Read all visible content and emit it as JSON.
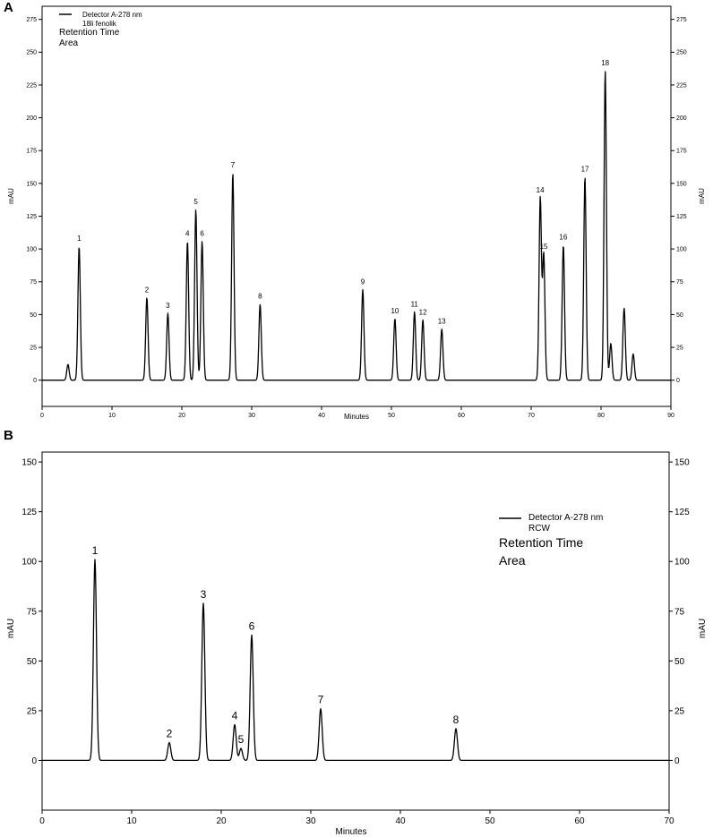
{
  "panels": [
    {
      "letter": "A",
      "legend": {
        "detector": "Detector A-278 nm",
        "sample": "18li fenolik",
        "line1": "Retention Time",
        "line2": "Area"
      },
      "ylabel_left": "mAU",
      "ylabel_right": "mAU",
      "xlabel": "Minutes"
    },
    {
      "letter": "B",
      "legend": {
        "detector": "Detector A-278 nm",
        "sample": "RCW",
        "line1": "Retention Time",
        "line2": "Area"
      },
      "ylabel_left": "mAU",
      "ylabel_right": "mAU",
      "xlabel": "Minutes"
    }
  ],
  "chart_data": [
    {
      "type": "line",
      "xlabel": "Minutes",
      "ylabel": "mAU",
      "xlim": [
        0,
        90
      ],
      "ylim": [
        -20,
        285
      ],
      "xticks": [
        0,
        10,
        20,
        30,
        40,
        50,
        60,
        70,
        80,
        90
      ],
      "yticks": [
        0,
        25,
        50,
        75,
        100,
        125,
        150,
        175,
        200,
        225,
        250,
        275
      ],
      "legend_entries": [
        "Detector A-278 nm",
        "18li fenolik"
      ],
      "peaks": [
        {
          "label": "1",
          "x": 5.3,
          "y": 102
        },
        {
          "label": "2",
          "x": 15.0,
          "y": 63
        },
        {
          "label": "3",
          "x": 18.0,
          "y": 51
        },
        {
          "label": "4",
          "x": 20.8,
          "y": 106
        },
        {
          "label": "5",
          "x": 22.0,
          "y": 130
        },
        {
          "label": "6",
          "x": 22.9,
          "y": 106
        },
        {
          "label": "7",
          "x": 27.3,
          "y": 158
        },
        {
          "label": "8",
          "x": 31.2,
          "y": 58
        },
        {
          "label": "9",
          "x": 45.9,
          "y": 69
        },
        {
          "label": "10",
          "x": 50.5,
          "y": 47
        },
        {
          "label": "11",
          "x": 53.3,
          "y": 52
        },
        {
          "label": "12",
          "x": 54.5,
          "y": 46
        },
        {
          "label": "13",
          "x": 57.2,
          "y": 39
        },
        {
          "label": "14",
          "x": 71.3,
          "y": 139
        },
        {
          "label": "15",
          "x": 71.8,
          "y": 96
        },
        {
          "label": "16",
          "x": 74.6,
          "y": 103
        },
        {
          "label": "17",
          "x": 77.7,
          "y": 155
        },
        {
          "label": "18",
          "x": 80.6,
          "y": 236
        }
      ],
      "minor_peaks": [
        {
          "x": 3.7,
          "y": 12
        },
        {
          "x": 81.4,
          "y": 28
        },
        {
          "x": 83.3,
          "y": 55
        },
        {
          "x": 84.6,
          "y": 20
        }
      ]
    },
    {
      "type": "line",
      "xlabel": "Minutes",
      "ylabel": "mAU",
      "xlim": [
        0,
        70
      ],
      "ylim": [
        -25,
        155
      ],
      "xticks": [
        0,
        10,
        20,
        30,
        40,
        50,
        60,
        70
      ],
      "yticks": [
        0,
        25,
        50,
        75,
        100,
        125,
        150
      ],
      "legend_entries": [
        "Detector A-278 nm",
        "RCW"
      ],
      "peaks": [
        {
          "label": "1",
          "x": 5.9,
          "y": 101
        },
        {
          "label": "2",
          "x": 14.2,
          "y": 9
        },
        {
          "label": "3",
          "x": 18.0,
          "y": 79
        },
        {
          "label": "4",
          "x": 21.5,
          "y": 18
        },
        {
          "label": "5",
          "x": 22.2,
          "y": 6
        },
        {
          "label": "6",
          "x": 23.4,
          "y": 63
        },
        {
          "label": "7",
          "x": 31.1,
          "y": 26
        },
        {
          "label": "8",
          "x": 46.2,
          "y": 16
        }
      ]
    }
  ]
}
